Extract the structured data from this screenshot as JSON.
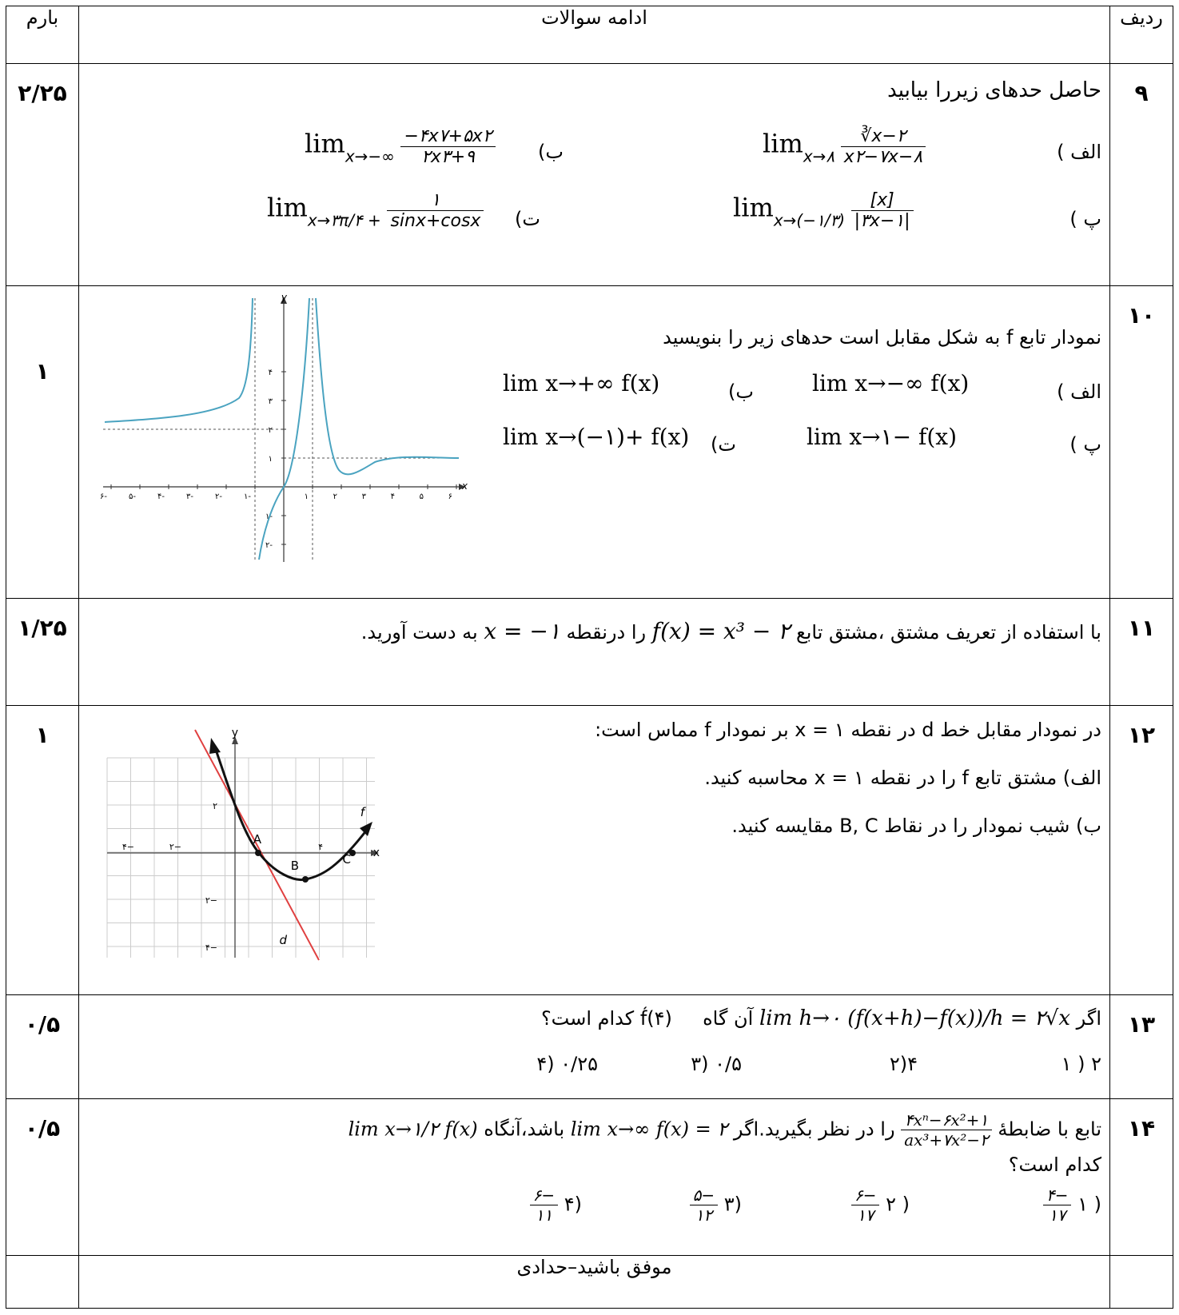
{
  "header": {
    "barem": "بارم",
    "title": "ادامه سوالات",
    "row": "ردیف"
  },
  "q9": {
    "num": "۹",
    "barem": "۲/۲۵",
    "title": "حاصل حدهای زیررا بیابید",
    "a_label": "الف )",
    "b_label": "ب)",
    "c_label": "پ )",
    "d_label": "ت)",
    "a_sub": "x→۸",
    "a_num": "∛x−۲",
    "a_den": "x۲−۷x−۸",
    "b_sub": "x→−∞",
    "b_num": "−۴x۷+۵x۲",
    "b_den": "۲x۳+۹",
    "c_sub": "x→(−۱/۳)",
    "c_num": "[x]",
    "c_den": "|۳x−۱|",
    "d_sub": "x→۳π/۴ +",
    "d_num": "۱",
    "d_den": "sinx+cosx"
  },
  "q10": {
    "num": "۱۰",
    "barem": "۱",
    "title": "نمودار تابع f به شکل مقابل است حدهای زیر را بنویسید",
    "a_label": "الف )",
    "a_expr": "lim x→−∞ f(x)",
    "b_label": "ب)",
    "b_expr": "lim x→+∞ f(x)",
    "c_label": "پ )",
    "c_expr": "lim x→۱− f(x)",
    "d_label": "ت)",
    "d_expr": "lim x→(−۱)+ f(x)",
    "graph": {
      "y_label": "y",
      "x_label": "x",
      "x_ticks": [
        "-۶",
        "-۵",
        "-۴",
        "-۳",
        "-۲",
        "-۱",
        "۱",
        "۲",
        "۳",
        "۴",
        "۵",
        "۶"
      ],
      "y_ticks": [
        "۴",
        "۳",
        "۲",
        "۱",
        "-۱",
        "-۲"
      ]
    }
  },
  "q11": {
    "num": "۱۱",
    "barem": "۱/۲۵",
    "text_before": "با استفاده از تعریف مشتق ،مشتق تابع",
    "func": "f(x) = x³ − ۲",
    "text_mid": "را درنقطه",
    "point": "x = −۱",
    "text_after": "به دست آورید."
  },
  "q12": {
    "num": "۱۲",
    "barem": "۱",
    "line1": "در نمودار مقابل خط d در نقطه x = ۱ بر نمودار f مماس است:",
    "line2": "الف) مشتق تابع f را در نقطه x = ۱ محاسبه کنید.",
    "line3": "ب)  شیب نمودار را در نقاط B, C مقایسه کنید.",
    "graph": {
      "y_label": "y",
      "x_label": "x",
      "f_label": "f",
      "d_label": "d",
      "A": "A",
      "B": "B",
      "C": "C",
      "x_ticks": [
        "−۴",
        "−۲",
        "۴"
      ],
      "y_ticks": [
        "۲",
        "−۲",
        "−۴"
      ]
    }
  },
  "q13": {
    "num": "۱۳",
    "barem": "۰/۵",
    "text": "اگر",
    "cond": "lim h→۰ (f(x+h)−f(x))/h = ۲√x",
    "text2": "آن گاه",
    "ask": "f́(۴) کدام است؟",
    "opt1": "۲ ( ۱",
    "opt2": "۴(۲",
    "opt3": "۰/۵ (۳",
    "opt4": "۰/۲۵ (۴"
  },
  "q14": {
    "num": "۱۴",
    "barem": "۰/۵",
    "text1": "تابع با ضابطهٔ",
    "func_num": "۴xⁿ−۶x²+۱",
    "func_den": "ax³+۷x²−۲",
    "text2": "را در نظر بگیرید.اگر",
    "cond": "lim x→∞ f(x) = ۲",
    "text3": "باشد،آنگاه",
    "ask": "lim x→۱/۲ f(x)",
    "line2": "کدام است؟",
    "opt1_num": "−۴",
    "opt1_den": "۱۷",
    "opt1_label": "( ۱",
    "opt2_num": "−۶",
    "opt2_den": "۱۷",
    "opt2_label": "( ۲",
    "opt3_num": "−۵",
    "opt3_den": "۱۲",
    "opt3_label": "(۳",
    "opt4_num": "−۶",
    "opt4_den": "۱۱",
    "opt4_label": "(۴"
  },
  "footer": {
    "text": "موفق باشید–حدادی"
  }
}
